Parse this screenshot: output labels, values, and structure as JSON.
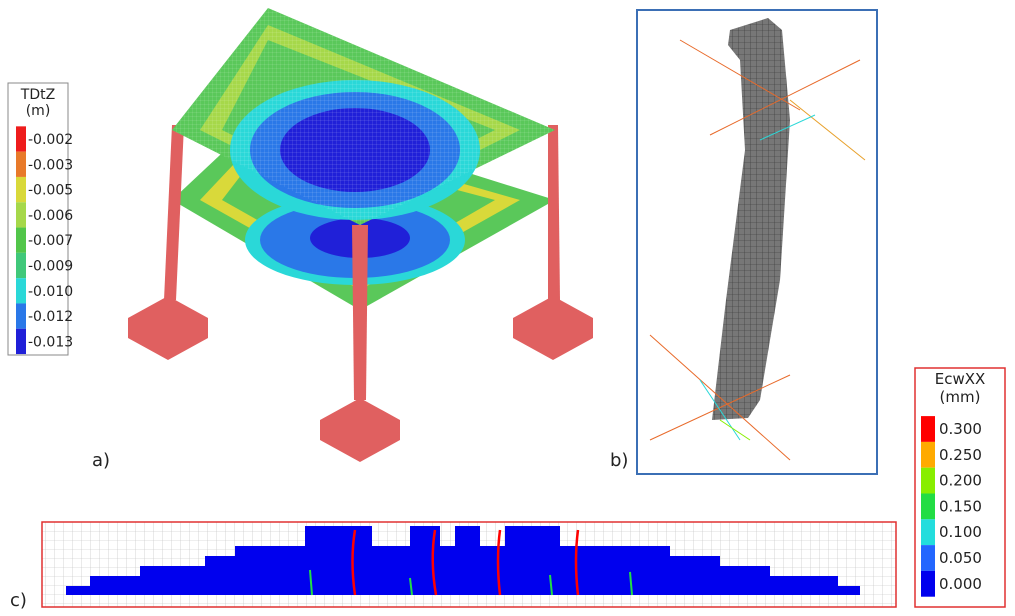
{
  "panels": [
    {
      "label": "a)"
    },
    {
      "label": "b)"
    },
    {
      "label": "c)"
    }
  ],
  "legends": [
    {
      "title": "TDtZ",
      "unit": "(m)",
      "entries": [
        {
          "label": "-0.002",
          "color": "#ee1c1c"
        },
        {
          "label": "-0.003",
          "color": "#e87a2a"
        },
        {
          "label": "-0.005",
          "color": "#d9d93a"
        },
        {
          "label": "-0.006",
          "color": "#a6d84a"
        },
        {
          "label": "-0.007",
          "color": "#52c64a"
        },
        {
          "label": "-0.009",
          "color": "#40c87a"
        },
        {
          "label": "-0.010",
          "color": "#2ad8d8"
        },
        {
          "label": "-0.012",
          "color": "#2a78e8"
        },
        {
          "label": "-0.013",
          "color": "#2020d8"
        }
      ]
    },
    {
      "title": "EcwXX",
      "unit": "(mm)",
      "entries": [
        {
          "label": "0.300",
          "color": "#ff0000"
        },
        {
          "label": "0.250",
          "color": "#ffaa00"
        },
        {
          "label": "0.200",
          "color": "#88ee00"
        },
        {
          "label": "0.150",
          "color": "#22dd44"
        },
        {
          "label": "0.100",
          "color": "#22dddd"
        },
        {
          "label": "0.050",
          "color": "#2266ff"
        },
        {
          "label": "0.000",
          "color": "#0000ee"
        }
      ]
    }
  ]
}
